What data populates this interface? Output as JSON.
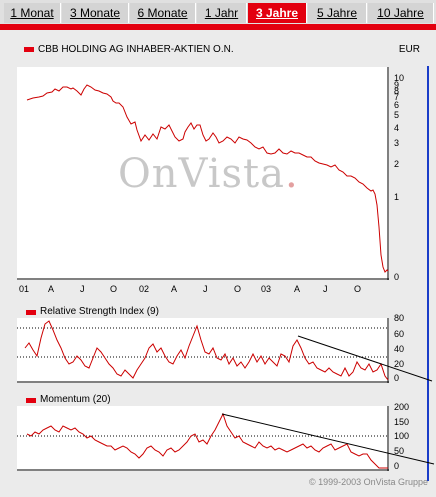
{
  "tabs": [
    {
      "label": "1 Monat",
      "active": false
    },
    {
      "label": "3 Monate",
      "active": false
    },
    {
      "label": "6 Monate",
      "active": false
    },
    {
      "label": "1 Jahr",
      "active": false
    },
    {
      "label": "3 Jahre",
      "active": true
    },
    {
      "label": "5 Jahre",
      "active": false
    },
    {
      "label": "10 Jahre",
      "active": false
    }
  ],
  "header": {
    "title": "CBB HOLDING AG INHABER-AKTIEN O.N.",
    "currency": "EUR"
  },
  "watermark": {
    "text": "OnVista",
    "dot": "."
  },
  "colors": {
    "accent": "#e3000f",
    "series": "#cc0000",
    "trend": "#000000",
    "blue": "#1a3cc8"
  },
  "price_chart": {
    "x_ticks": [
      "01",
      "A",
      "J",
      "O",
      "02",
      "A",
      "J",
      "O",
      "03",
      "A",
      "J",
      "O"
    ],
    "y_ticks": [
      "10",
      "9",
      "8",
      "7",
      "6",
      "5",
      "4",
      "3",
      "2",
      "1",
      "0"
    ]
  },
  "rsi_chart": {
    "title": "Relative Strength Index (9)",
    "y_ticks": [
      "80",
      "60",
      "40",
      "20",
      "0"
    ]
  },
  "momentum_chart": {
    "title": "Momentum (20)",
    "y_ticks": [
      "200",
      "150",
      "100",
      "50",
      "0"
    ]
  },
  "copyright": "© 1999-2003 OnVista Gruppe"
}
